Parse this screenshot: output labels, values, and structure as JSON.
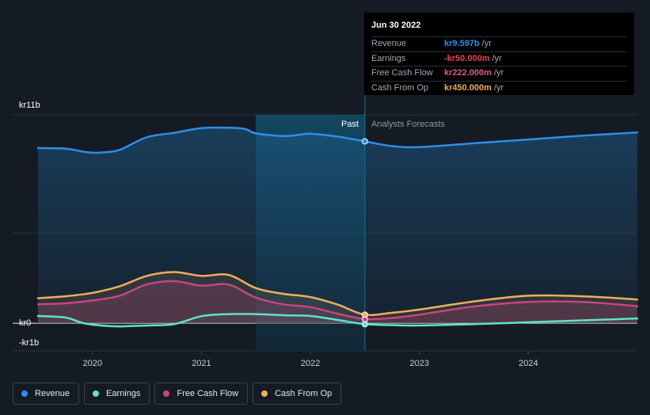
{
  "chart_data": {
    "type": "area",
    "title": "",
    "y_axis": {
      "label_top": "kr11b",
      "label_zero": "kr0",
      "label_bottom": "-kr1b",
      "ylim": [
        -1.0,
        11.0
      ]
    },
    "x_axis": {
      "ticks": [
        "2020",
        "2021",
        "2022",
        "2023",
        "2024"
      ],
      "xlim": [
        2019.5,
        2025.0
      ]
    },
    "regions": {
      "past_label": "Past",
      "forecast_label": "Analysts Forecasts",
      "divider_x": 2022.5
    },
    "grid": true,
    "legend_position": "bottom-left",
    "series": [
      {
        "name": "Revenue",
        "color": "#2d8ee6",
        "points": [
          [
            2019.5,
            9.25
          ],
          [
            2019.75,
            9.22
          ],
          [
            2019.92,
            9.05
          ],
          [
            2020.0,
            9.0
          ],
          [
            2020.1,
            9.02
          ],
          [
            2020.25,
            9.15
          ],
          [
            2020.5,
            9.82
          ],
          [
            2020.75,
            10.05
          ],
          [
            2021.0,
            10.3
          ],
          [
            2021.25,
            10.32
          ],
          [
            2021.4,
            10.25
          ],
          [
            2021.5,
            10.02
          ],
          [
            2021.75,
            9.88
          ],
          [
            2021.9,
            9.95
          ],
          [
            2022.0,
            10.0
          ],
          [
            2022.25,
            9.85
          ],
          [
            2022.5,
            9.6
          ],
          [
            2022.75,
            9.35
          ],
          [
            2023.0,
            9.3
          ],
          [
            2023.5,
            9.5
          ],
          [
            2024.0,
            9.7
          ],
          [
            2024.5,
            9.9
          ],
          [
            2025.0,
            10.07
          ]
        ]
      },
      {
        "name": "Earnings",
        "color": "#5fe1cc",
        "points": [
          [
            2019.5,
            0.38
          ],
          [
            2019.75,
            0.3
          ],
          [
            2019.92,
            0.0
          ],
          [
            2020.1,
            -0.13
          ],
          [
            2020.25,
            -0.17
          ],
          [
            2020.5,
            -0.12
          ],
          [
            2020.75,
            -0.05
          ],
          [
            2021.0,
            0.37
          ],
          [
            2021.25,
            0.48
          ],
          [
            2021.5,
            0.48
          ],
          [
            2021.75,
            0.42
          ],
          [
            2022.0,
            0.38
          ],
          [
            2022.25,
            0.17
          ],
          [
            2022.5,
            -0.05
          ],
          [
            2022.75,
            -0.1
          ],
          [
            2023.0,
            -0.12
          ],
          [
            2023.5,
            -0.05
          ],
          [
            2024.0,
            0.05
          ],
          [
            2024.5,
            0.15
          ],
          [
            2025.0,
            0.25
          ]
        ]
      },
      {
        "name": "Free Cash Flow",
        "color": "#c44680",
        "points": [
          [
            2019.5,
            1.0
          ],
          [
            2019.75,
            1.05
          ],
          [
            2020.0,
            1.2
          ],
          [
            2020.25,
            1.45
          ],
          [
            2020.5,
            2.05
          ],
          [
            2020.75,
            2.22
          ],
          [
            2021.0,
            1.98
          ],
          [
            2021.25,
            2.04
          ],
          [
            2021.5,
            1.35
          ],
          [
            2021.75,
            1.0
          ],
          [
            2022.0,
            0.85
          ],
          [
            2022.25,
            0.5
          ],
          [
            2022.5,
            0.22
          ],
          [
            2022.75,
            0.28
          ],
          [
            2023.0,
            0.45
          ],
          [
            2023.5,
            0.88
          ],
          [
            2024.0,
            1.12
          ],
          [
            2024.5,
            1.12
          ],
          [
            2025.0,
            0.9
          ]
        ]
      },
      {
        "name": "Cash From Op",
        "color": "#eeae5c",
        "points": [
          [
            2019.5,
            1.32
          ],
          [
            2019.75,
            1.42
          ],
          [
            2020.0,
            1.6
          ],
          [
            2020.25,
            1.95
          ],
          [
            2020.5,
            2.5
          ],
          [
            2020.75,
            2.7
          ],
          [
            2021.0,
            2.5
          ],
          [
            2021.25,
            2.55
          ],
          [
            2021.5,
            1.85
          ],
          [
            2021.75,
            1.55
          ],
          [
            2022.0,
            1.38
          ],
          [
            2022.25,
            0.98
          ],
          [
            2022.5,
            0.45
          ],
          [
            2022.75,
            0.55
          ],
          [
            2023.0,
            0.72
          ],
          [
            2023.5,
            1.15
          ],
          [
            2024.0,
            1.45
          ],
          [
            2024.5,
            1.42
          ],
          [
            2025.0,
            1.25
          ]
        ]
      }
    ]
  },
  "tooltip": {
    "date": "Jun 30 2022",
    "rows": [
      {
        "label": "Revenue",
        "value": "kr9.597b",
        "unit": "/yr",
        "color": "#2d8ee6"
      },
      {
        "label": "Earnings",
        "value": "-kr50.000m",
        "unit": "/yr",
        "color": "#e8454b"
      },
      {
        "label": "Free Cash Flow",
        "value": "kr222.000m",
        "unit": "/yr",
        "color": "#d75b93"
      },
      {
        "label": "Cash From Op",
        "value": "kr450.000m",
        "unit": "/yr",
        "color": "#eeae5c"
      }
    ]
  },
  "legend": [
    {
      "label": "Revenue",
      "color": "#2d8ee6"
    },
    {
      "label": "Earnings",
      "color": "#5fe1cc"
    },
    {
      "label": "Free Cash Flow",
      "color": "#c44680"
    },
    {
      "label": "Cash From Op",
      "color": "#eeae5c"
    }
  ]
}
